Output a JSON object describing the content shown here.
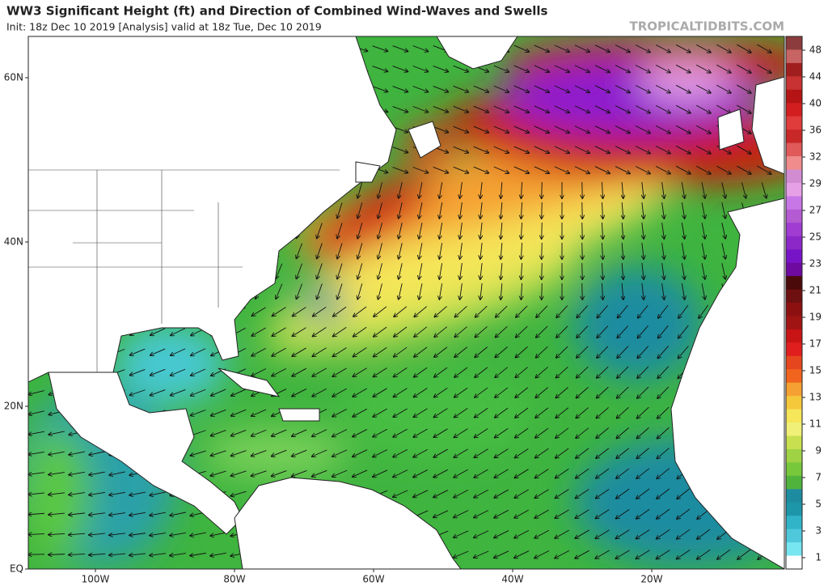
{
  "header": {
    "title": "WW3 Significant Height (ft) and Direction of Combined Wind-Waves and Swells",
    "subtitle": "Init: 18z Dec 10 2019   [Analysis]   valid at 18z Tue, Dec 10 2019",
    "brand": "TROPICALTIDBITS.COM"
  },
  "map": {
    "lat_labels": [
      "60N",
      "40N",
      "20N",
      "EQ"
    ],
    "lon_labels": [
      "100W",
      "80W",
      "60W",
      "40W",
      "20W"
    ]
  },
  "colorbar": {
    "labels": [
      "48",
      "44",
      "40",
      "36",
      "32",
      "29",
      "27",
      "25",
      "23",
      "21",
      "19",
      "17",
      "15",
      "13",
      "11",
      "9",
      "7",
      "5",
      "3",
      "1"
    ]
  }
}
